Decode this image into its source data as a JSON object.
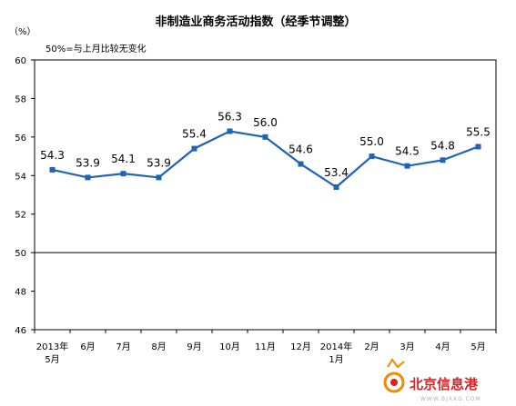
{
  "chart_data": {
    "type": "line",
    "title": "非制造业商务活动指数（经季节调整）",
    "unit": "（%）",
    "note": "50%=与上月比较无变化",
    "categories": [
      "2013年\n5月",
      "6月",
      "7月",
      "8月",
      "9月",
      "10月",
      "11月",
      "12月",
      "2014年\n1月",
      "2月",
      "3月",
      "4月",
      "5月"
    ],
    "series": [
      {
        "values": [
          54.3,
          53.9,
          54.1,
          53.9,
          55.4,
          56.3,
          56.0,
          54.6,
          53.4,
          55.0,
          54.5,
          54.8,
          55.5
        ]
      }
    ],
    "data_labels": [
      "54.3",
      "53.9",
      "54.1",
      "53.9",
      "55.4",
      "56.3",
      "56.0",
      "54.6",
      "53.4",
      "55.0",
      "54.5",
      "54.8",
      "55.5"
    ],
    "ylim": [
      46,
      60
    ],
    "yticks": [
      46,
      48,
      50,
      52,
      54,
      56,
      58,
      60
    ],
    "reference_line": 50,
    "grid": false,
    "legend": "none",
    "line_color": "#1f63b8"
  },
  "watermark": {
    "text": "北京信息港",
    "sub": "WWW.BJXXG.COM",
    "color": "#e02020"
  }
}
